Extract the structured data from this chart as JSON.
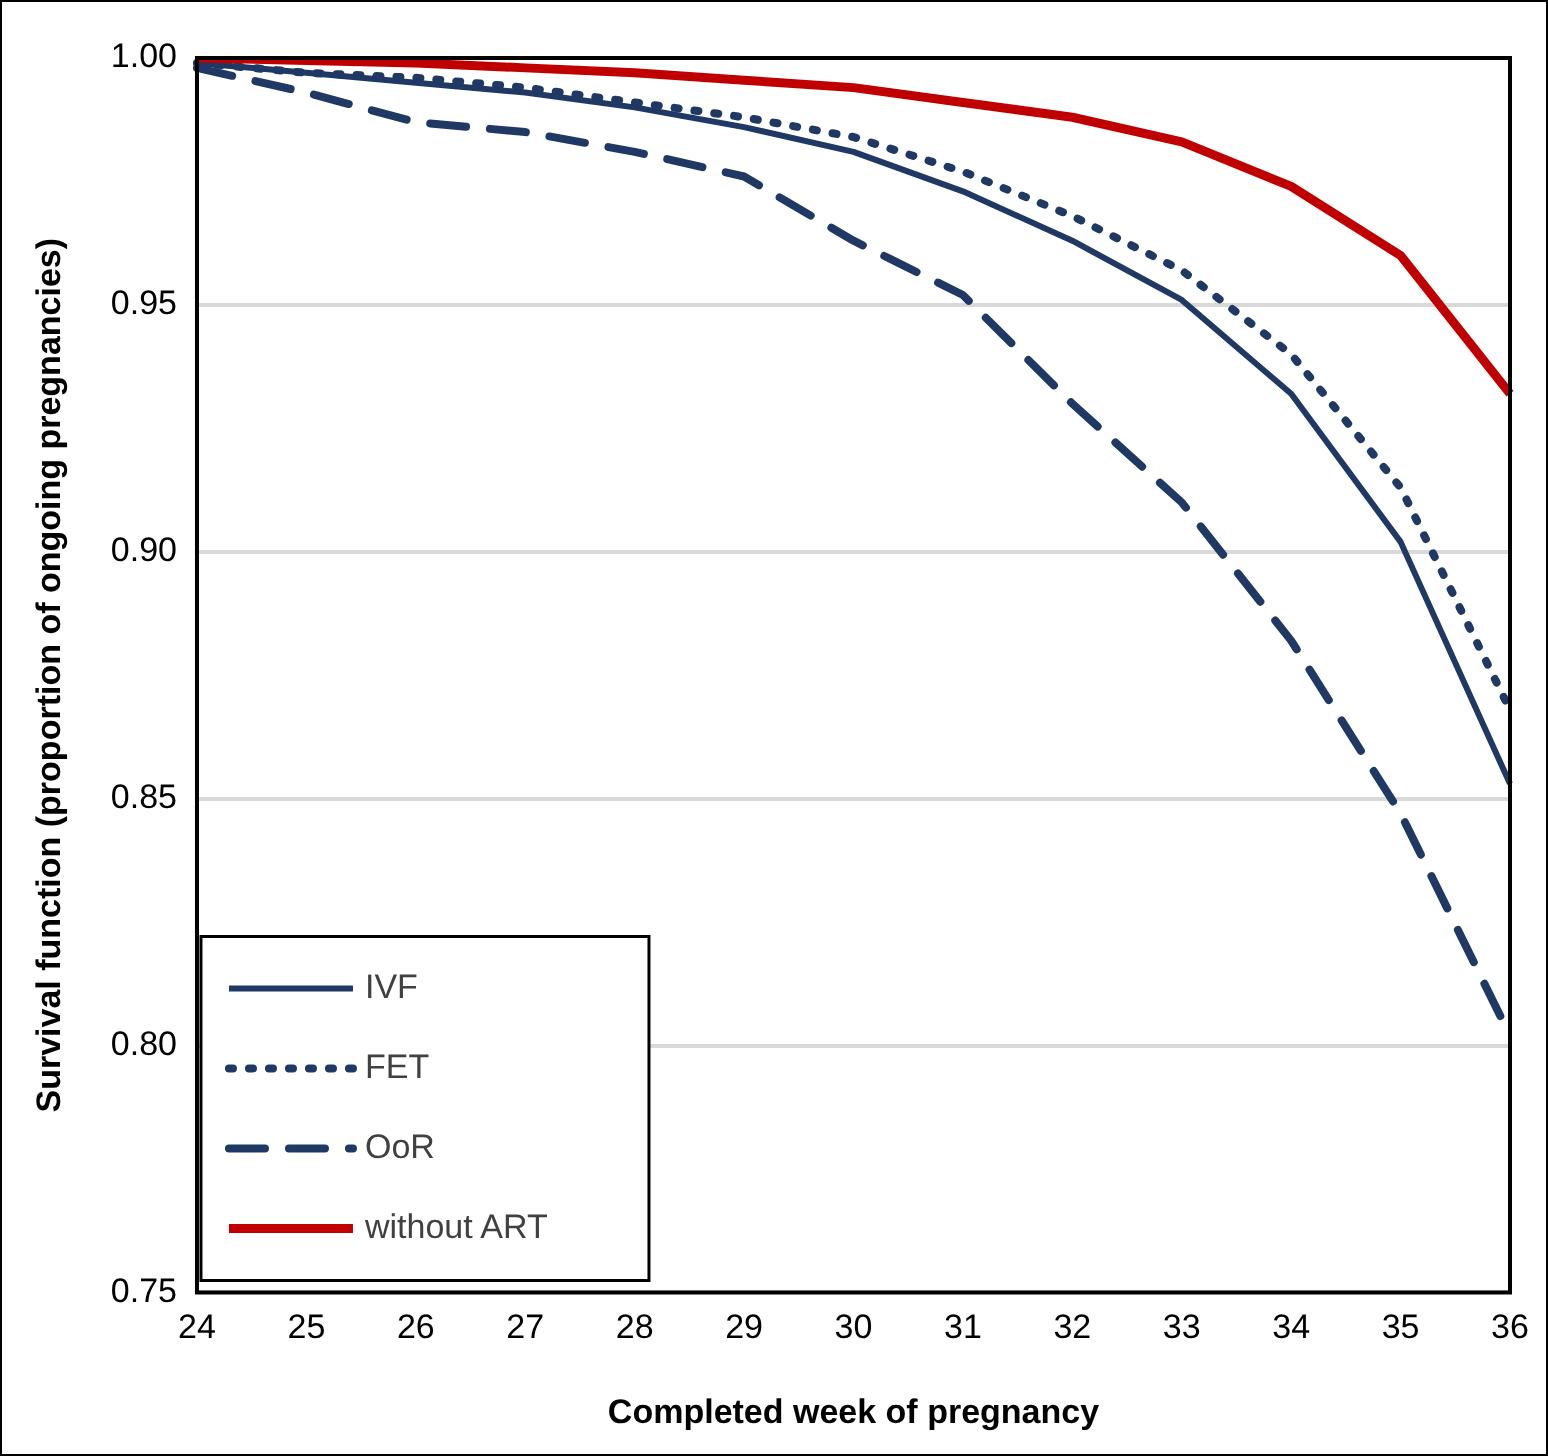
{
  "chart_data": {
    "type": "line",
    "xlabel": "Completed week of pregnancy",
    "ylabel": "Survival function (proportion of ongoing pregnancies)",
    "categories": [
      "24",
      "25",
      "26",
      "27",
      "28",
      "29",
      "30",
      "31",
      "32",
      "33",
      "34",
      "35",
      "36"
    ],
    "ylim": [
      0.75,
      1.0
    ],
    "yticks": [
      {
        "value": 0.75,
        "label": "0.75"
      },
      {
        "value": 0.8,
        "label": "0.80"
      },
      {
        "value": 0.85,
        "label": "0.85"
      },
      {
        "value": 0.9,
        "label": "0.90"
      },
      {
        "value": 0.95,
        "label": "0.95"
      },
      {
        "value": 1.0,
        "label": "1.00"
      }
    ],
    "grid": "y",
    "legend": "bottom left",
    "marker": "none",
    "series": [
      {
        "name": "IVF",
        "color": "#1f3864",
        "line_style": "solid",
        "values": [
          0.999,
          0.997,
          0.995,
          0.993,
          0.99,
          0.986,
          0.981,
          0.973,
          0.963,
          0.951,
          0.932,
          0.902,
          0.853
        ]
      },
      {
        "name": "FET",
        "color": "#1f3864",
        "line_style": "dotted",
        "values": [
          0.999,
          0.997,
          0.996,
          0.994,
          0.991,
          0.988,
          0.984,
          0.977,
          0.968,
          0.957,
          0.94,
          0.913,
          0.868
        ]
      },
      {
        "name": "OoR",
        "color": "#1f3864",
        "line_style": "dashed",
        "values": [
          0.998,
          0.993,
          0.987,
          0.985,
          0.981,
          0.976,
          0.963,
          0.952,
          0.93,
          0.91,
          0.882,
          0.847,
          0.802
        ]
      },
      {
        "name": "without ART",
        "color": "#c00000",
        "line_style": "solid",
        "values": [
          1.0,
          0.9995,
          0.999,
          0.998,
          0.997,
          0.9955,
          0.994,
          0.991,
          0.988,
          0.983,
          0.974,
          0.96,
          0.932
        ]
      }
    ]
  }
}
